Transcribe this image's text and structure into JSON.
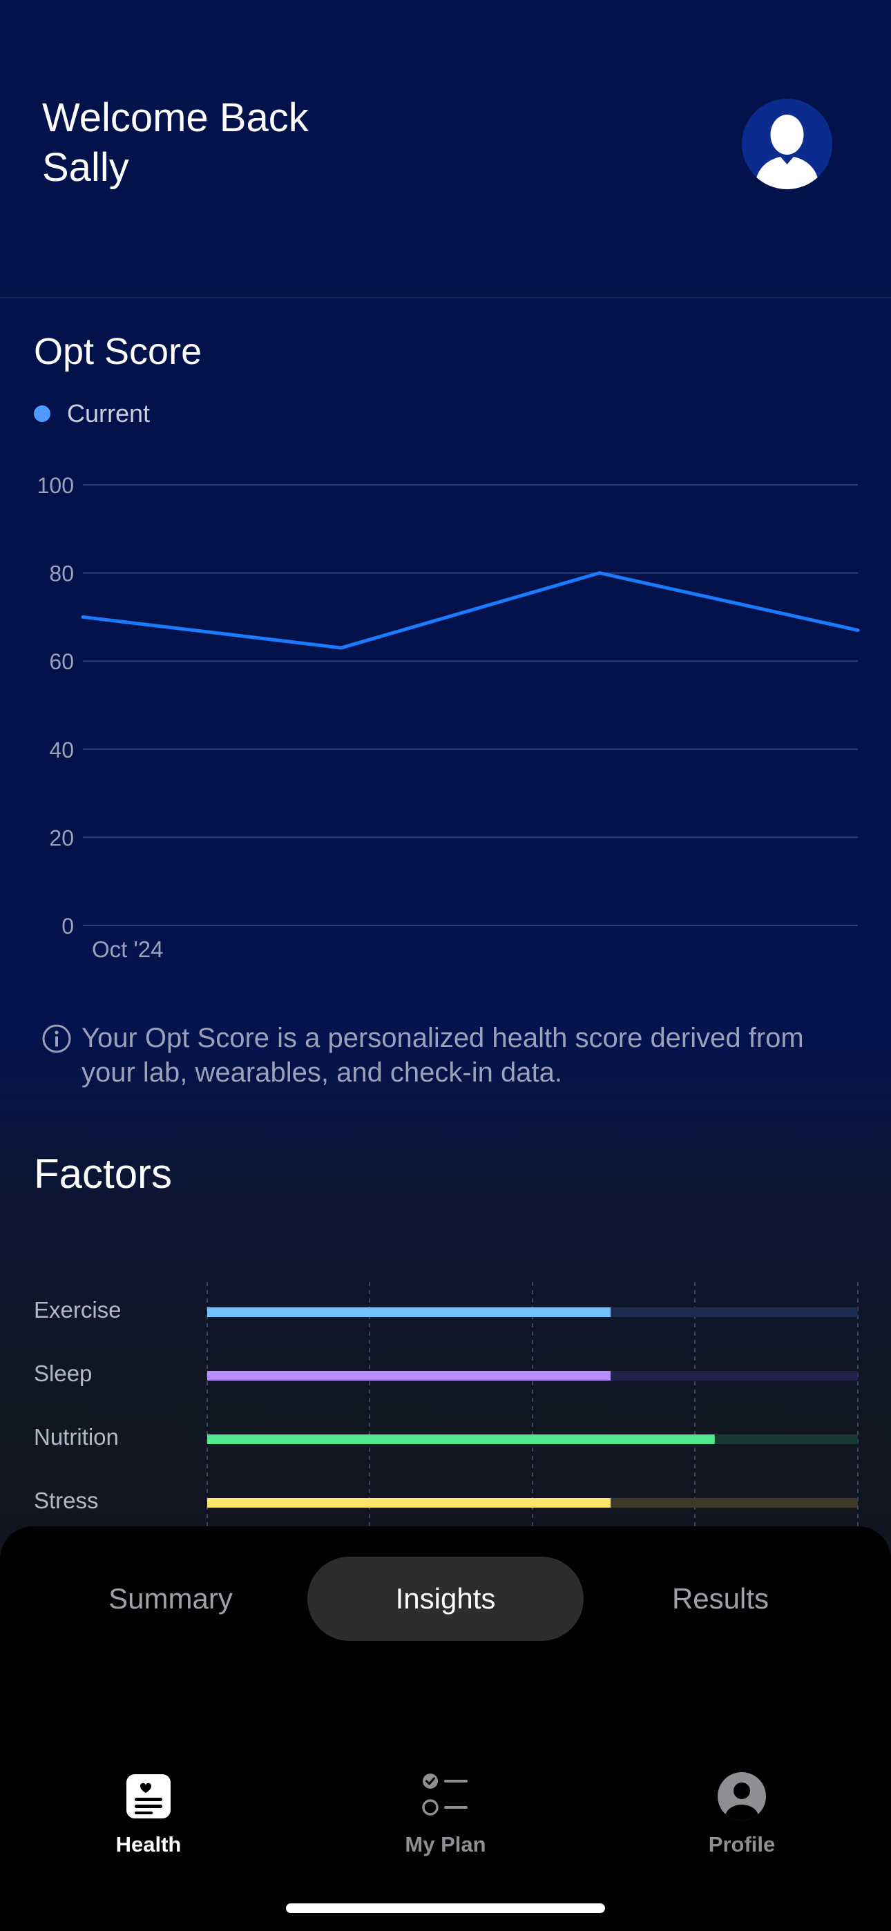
{
  "header": {
    "greeting_line1": "Welcome Back",
    "greeting_line2": "Sally",
    "avatar_icon": "person-silhouette-icon"
  },
  "opt_score": {
    "title": "Opt Score",
    "legend_label": "Current",
    "info_icon": "info-circle-icon",
    "info_text": "Your Opt Score is a personalized health score derived from your lab, wearables, and check-in data."
  },
  "chart_data": {
    "type": "line",
    "title": "Opt Score",
    "x_tick_labels": [
      "Oct '24"
    ],
    "series": [
      {
        "name": "Current",
        "color": "#1a7bff",
        "values": [
          70,
          63,
          80,
          67
        ]
      }
    ],
    "ylim": [
      0,
      100
    ],
    "y_ticks": [
      0,
      20,
      40,
      60,
      80,
      100
    ],
    "grid": true,
    "legend": "top-left"
  },
  "factors": {
    "title": "Factors",
    "items": [
      {
        "label": "Exercise",
        "value": 0.62,
        "color": "#72c2ff",
        "track": "#1b2b4d"
      },
      {
        "label": "Sleep",
        "value": 0.62,
        "color": "#b58bff",
        "track": "#22224a"
      },
      {
        "label": "Nutrition",
        "value": 0.78,
        "color": "#56e890",
        "track": "#163a31"
      },
      {
        "label": "Stress",
        "value": 0.62,
        "color": "#ffe46b",
        "track": "#3d3b28"
      }
    ]
  },
  "segments": {
    "items": [
      "Summary",
      "Insights",
      "Results"
    ],
    "active": "Insights"
  },
  "nav": {
    "health": "Health",
    "my_plan": "My Plan",
    "profile": "Profile"
  }
}
